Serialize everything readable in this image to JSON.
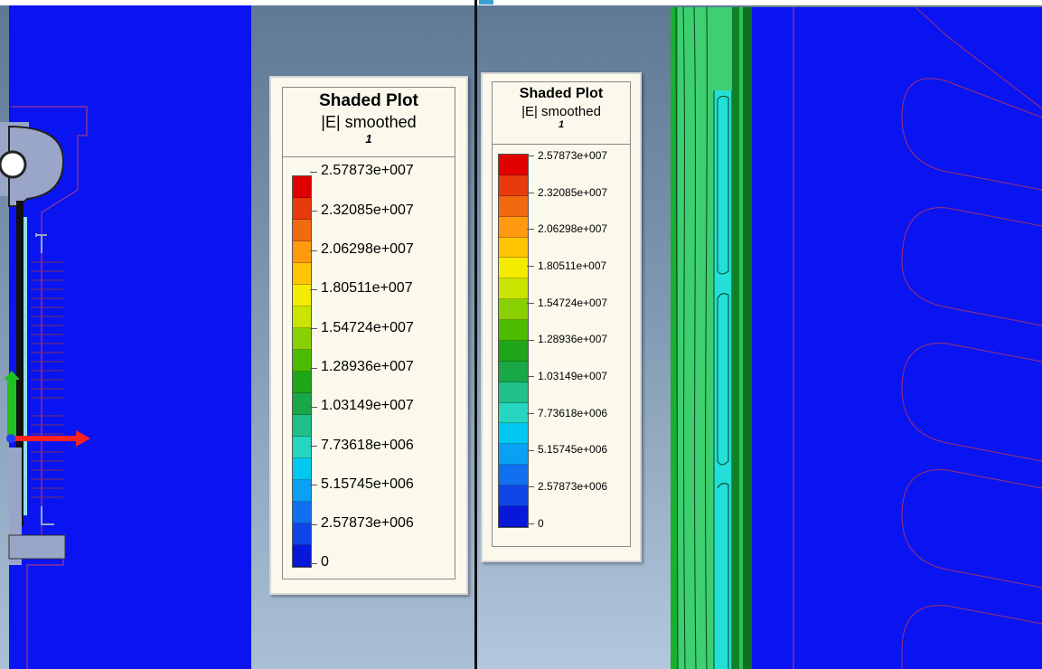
{
  "legend": {
    "title": "Shaded Plot",
    "subtitle": "|E| smoothed",
    "index": "1",
    "values": [
      "2.57873e+007",
      "2.32085e+007",
      "2.06298e+007",
      "1.80511e+007",
      "1.54724e+007",
      "1.28936e+007",
      "1.03149e+007",
      "7.73618e+006",
      "5.15745e+006",
      "2.57873e+006",
      "0"
    ]
  },
  "colors": {
    "field_blue": "#0a14f0",
    "scale": [
      "#e00000",
      "#e83a0a",
      "#f26a10",
      "#ff9a10",
      "#ffc400",
      "#f4ec00",
      "#c8e400",
      "#88d000",
      "#4cbc00",
      "#1ea618",
      "#18a848",
      "#20c08a",
      "#26d6c0",
      "#00c8f0",
      "#0aa0f4",
      "#1070f0",
      "#0e46e8",
      "#0818d8"
    ]
  }
}
